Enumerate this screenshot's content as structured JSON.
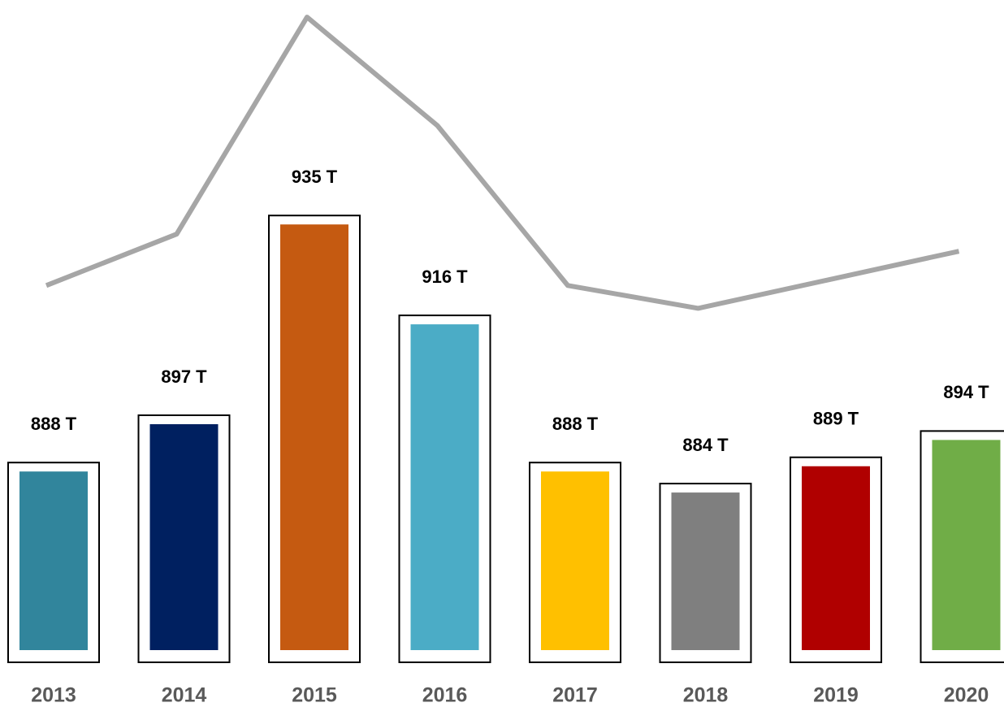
{
  "chart_data": {
    "type": "bar",
    "categories": [
      "2013",
      "2014",
      "2015",
      "2016",
      "2017",
      "2018",
      "2019",
      "2020"
    ],
    "series": [
      {
        "type": "bar",
        "colors": [
          "#31859c",
          "#002060",
          "#c55a11",
          "#4bacc6",
          "#ffc000",
          "#7f7f7f",
          "#b00000",
          "#70ad47"
        ],
        "values": [
          888,
          897,
          935,
          916,
          888,
          884,
          889,
          894
        ],
        "value_labels": [
          "888 T",
          "897 T",
          "935 T",
          "916 T",
          "888 T",
          "884 T",
          "889 T",
          "894 T"
        ]
      },
      {
        "type": "line",
        "color": "#a6a6a6",
        "axis": "y2",
        "values": [
          888,
          897,
          935,
          916,
          888,
          884,
          889,
          894
        ]
      }
    ],
    "ylim": [
      850,
      976
    ],
    "y2lim": [
      822,
      938
    ]
  }
}
